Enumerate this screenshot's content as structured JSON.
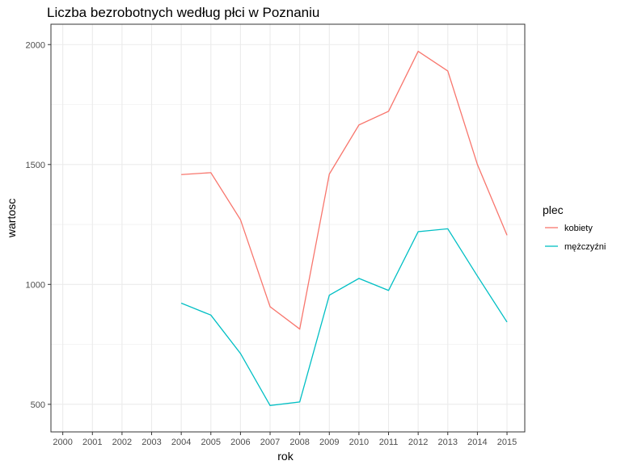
{
  "chart_data": {
    "type": "line",
    "title": "Liczba bezrobotnych według płci w Poznaniu",
    "xlabel": "rok",
    "ylabel": "wartosc",
    "x": [
      2000,
      2001,
      2002,
      2003,
      2004,
      2005,
      2006,
      2007,
      2008,
      2009,
      2010,
      2011,
      2012,
      2013,
      2014,
      2015
    ],
    "x_tick_labels": [
      "2000",
      "2001",
      "2002",
      "2003",
      "2004",
      "2005",
      "2006",
      "2007",
      "2008",
      "2009",
      "2010",
      "2011",
      "2012",
      "2013",
      "2014",
      "2015"
    ],
    "y_ticks": [
      500,
      1000,
      1500,
      2000
    ],
    "y_tick_labels": [
      "500",
      "1000",
      "1500",
      "2000"
    ],
    "xlim": [
      1999.6,
      2015.6
    ],
    "ylim": [
      385,
      2085
    ],
    "grid": true,
    "legend": {
      "title": "plec",
      "position": "right"
    },
    "series": [
      {
        "name": "kobiety",
        "color": "#F8766D",
        "x": [
          2004,
          2005,
          2006,
          2007,
          2008,
          2009,
          2010,
          2011,
          2012,
          2013,
          2014,
          2015
        ],
        "values": [
          1458,
          1466,
          1270,
          907,
          814,
          1460,
          1665,
          1722,
          1972,
          1890,
          1500,
          1205
        ]
      },
      {
        "name": "mężczyźni",
        "color": "#00BFC4",
        "x": [
          2004,
          2005,
          2006,
          2007,
          2008,
          2009,
          2010,
          2011,
          2012,
          2013,
          2014,
          2015
        ],
        "values": [
          922,
          872,
          712,
          495,
          510,
          955,
          1025,
          975,
          1220,
          1232,
          1035,
          843
        ]
      }
    ]
  }
}
